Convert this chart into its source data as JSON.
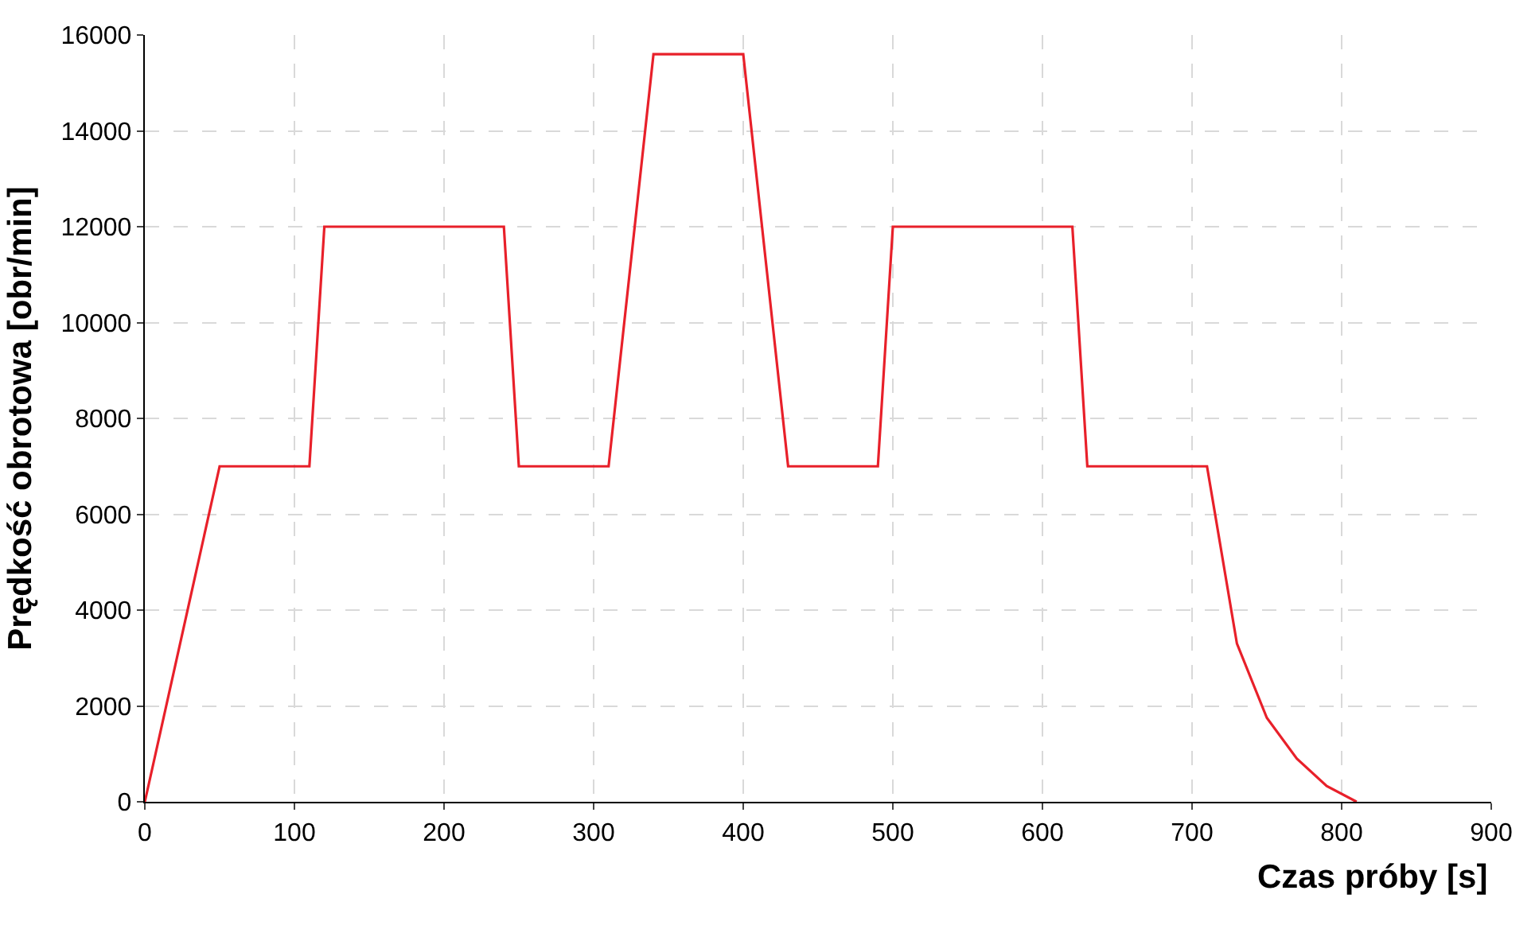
{
  "chart_data": {
    "type": "line",
    "xlabel": "Czas próby [s]",
    "ylabel": "Prędkość obrotowa [obr/min]",
    "x": [
      0,
      50,
      110,
      120,
      240,
      250,
      310,
      340,
      400,
      430,
      490,
      500,
      620,
      630,
      710,
      730,
      750,
      770,
      790,
      810
    ],
    "series": [
      {
        "color": "#e8202a",
        "values": [
          0,
          7000,
          7000,
          12000,
          12000,
          7000,
          7000,
          15600,
          15600,
          7000,
          7000,
          12000,
          12000,
          7000,
          7000,
          3300,
          1750,
          900,
          330,
          0
        ]
      }
    ],
    "xlim": [
      0,
      900
    ],
    "xticks": [
      0,
      100,
      200,
      300,
      400,
      500,
      600,
      700,
      800,
      900
    ],
    "ylim": [
      0,
      16000
    ],
    "yticks": [
      0,
      2000,
      4000,
      6000,
      8000,
      10000,
      12000,
      14000,
      16000
    ],
    "grid": true,
    "marker": "none",
    "line_style": "solid"
  }
}
